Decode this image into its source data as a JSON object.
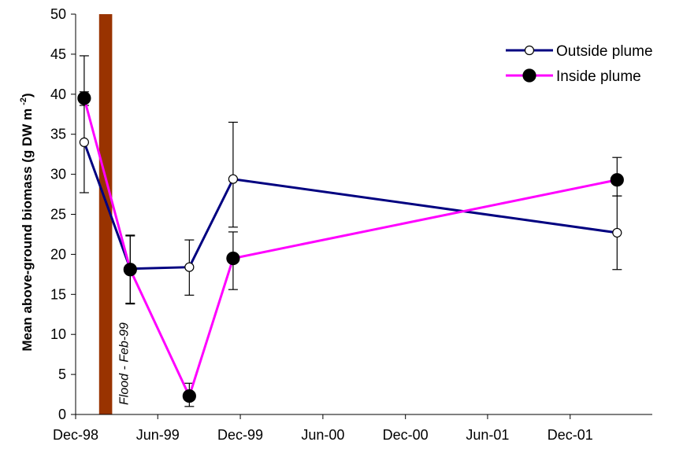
{
  "chart_data": {
    "type": "line",
    "ylabel": "Mean above-ground biomass (g DW m",
    "ylabel_sup": "-2",
    "ylabel_close": ")",
    "ylim": [
      0,
      50
    ],
    "yticks": [
      0,
      5,
      10,
      15,
      20,
      25,
      30,
      35,
      40,
      45,
      50
    ],
    "xlim": [
      "1998-12-01",
      "2002-06-01"
    ],
    "xticks": [
      {
        "date": "1998-12-01",
        "label": "Dec-98"
      },
      {
        "date": "1999-06-01",
        "label": "Jun-99"
      },
      {
        "date": "1999-12-01",
        "label": "Dec-99"
      },
      {
        "date": "2000-06-01",
        "label": "Jun-00"
      },
      {
        "date": "2000-12-01",
        "label": "Dec-00"
      },
      {
        "date": "2001-06-01",
        "label": "Jun-01"
      },
      {
        "date": "2001-12-01",
        "label": "Dec-01"
      }
    ],
    "grid": false,
    "legend_position": "top-right",
    "series": [
      {
        "name": "Outside plume",
        "color": "#000080",
        "marker": "open-circle",
        "points": [
          {
            "x": "1998-12-20",
            "y": 34.0,
            "err_low": 27.7,
            "err_high": 44.8
          },
          {
            "x": "1999-04-01",
            "y": 18.2,
            "err_low": 13.8,
            "err_high": 22.4
          },
          {
            "x": "1999-08-10",
            "y": 18.4,
            "err_low": 14.9,
            "err_high": 21.8
          },
          {
            "x": "1999-11-15",
            "y": 29.4,
            "err_low": 23.4,
            "err_high": 36.5
          },
          {
            "x": "2002-03-15",
            "y": 22.7,
            "err_low": 18.1,
            "err_high": 27.3
          }
        ]
      },
      {
        "name": "Inside plume",
        "color": "#ff00ff",
        "marker": "filled-circle",
        "points": [
          {
            "x": "1998-12-20",
            "y": 39.5,
            "err_low": 38.6,
            "err_high": 40.3
          },
          {
            "x": "1999-04-01",
            "y": 18.1,
            "err_low": 13.9,
            "err_high": 22.3
          },
          {
            "x": "1999-08-10",
            "y": 2.3,
            "err_low": 1.0,
            "err_high": 3.9
          },
          {
            "x": "1999-11-15",
            "y": 19.5,
            "err_low": 15.6,
            "err_high": 22.8
          },
          {
            "x": "2002-03-15",
            "y": 29.3,
            "err_low": 27.3,
            "err_high": 32.1
          }
        ]
      }
    ],
    "annotations": [
      {
        "text": "Flood - Feb-99",
        "x_start": "1999-01-22",
        "x_end": "1999-02-20",
        "color": "#993300"
      }
    ]
  }
}
